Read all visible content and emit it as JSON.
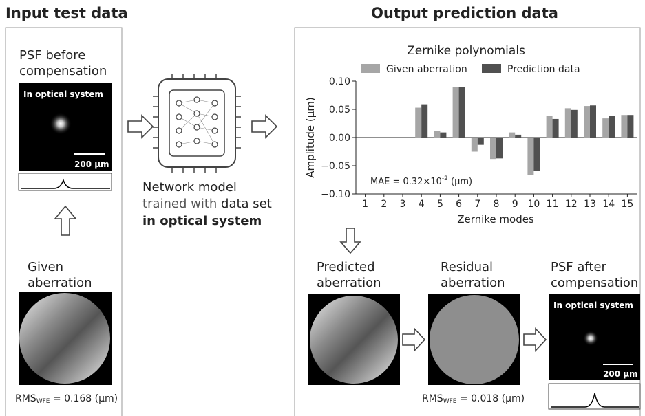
{
  "input": {
    "title": "Input test data",
    "psf_label": [
      "PSF before",
      "compensation"
    ],
    "psf_tag": "In optical system",
    "psf_scale": "200 μm",
    "aberration_label": [
      "Given",
      "aberration"
    ],
    "rms": [
      "RMS",
      "WFE",
      " = 0.168 (μm)"
    ]
  },
  "network": {
    "lines": [
      "Network model",
      "trained with ",
      "data set",
      "in optical system"
    ]
  },
  "output": {
    "title": "Output prediction data",
    "predicted_label": [
      "Predicted",
      "aberration"
    ],
    "residual_label": [
      "Residual",
      "aberration"
    ],
    "residual_rms": [
      "RMS",
      "WFE",
      " = 0.018 (μm)"
    ],
    "psf_label": [
      "PSF after",
      "compensation"
    ],
    "psf_tag": "In optical system",
    "psf_scale": "200 μm"
  },
  "chart_data": {
    "type": "bar",
    "title": "Zernike polynomials",
    "x_label": "Zernike modes",
    "y_label": "Amplitude (μm)",
    "annotation": [
      "MAE = 0.32×10",
      "-2",
      " (μm)"
    ],
    "categories": [
      "1",
      "2",
      "3",
      "4",
      "5",
      "6",
      "7",
      "8",
      "9",
      "10",
      "11",
      "12",
      "13",
      "14",
      "15"
    ],
    "series": [
      {
        "name": "Given aberration",
        "color": "#a6a6a6",
        "values": [
          0,
          0,
          0,
          0.053,
          0.011,
          0.09,
          -0.025,
          -0.038,
          0.009,
          -0.067,
          0.038,
          0.052,
          0.056,
          0.034,
          0.04
        ]
      },
      {
        "name": "Prediction data",
        "color": "#505050",
        "values": [
          0,
          0,
          0,
          0.059,
          0.009,
          0.09,
          -0.013,
          -0.037,
          0.005,
          -0.059,
          0.033,
          0.049,
          0.057,
          0.038,
          0.04
        ]
      }
    ],
    "ylim": [
      -0.1,
      0.1
    ],
    "yticks": [
      {
        "value": -0.1,
        "label": "−0.10"
      },
      {
        "value": -0.05,
        "label": "−0.05"
      },
      {
        "value": 0,
        "label": "0.00"
      },
      {
        "value": 0.05,
        "label": "0.05"
      },
      {
        "value": 0.1,
        "label": "0.10"
      }
    ],
    "legend": "top"
  }
}
